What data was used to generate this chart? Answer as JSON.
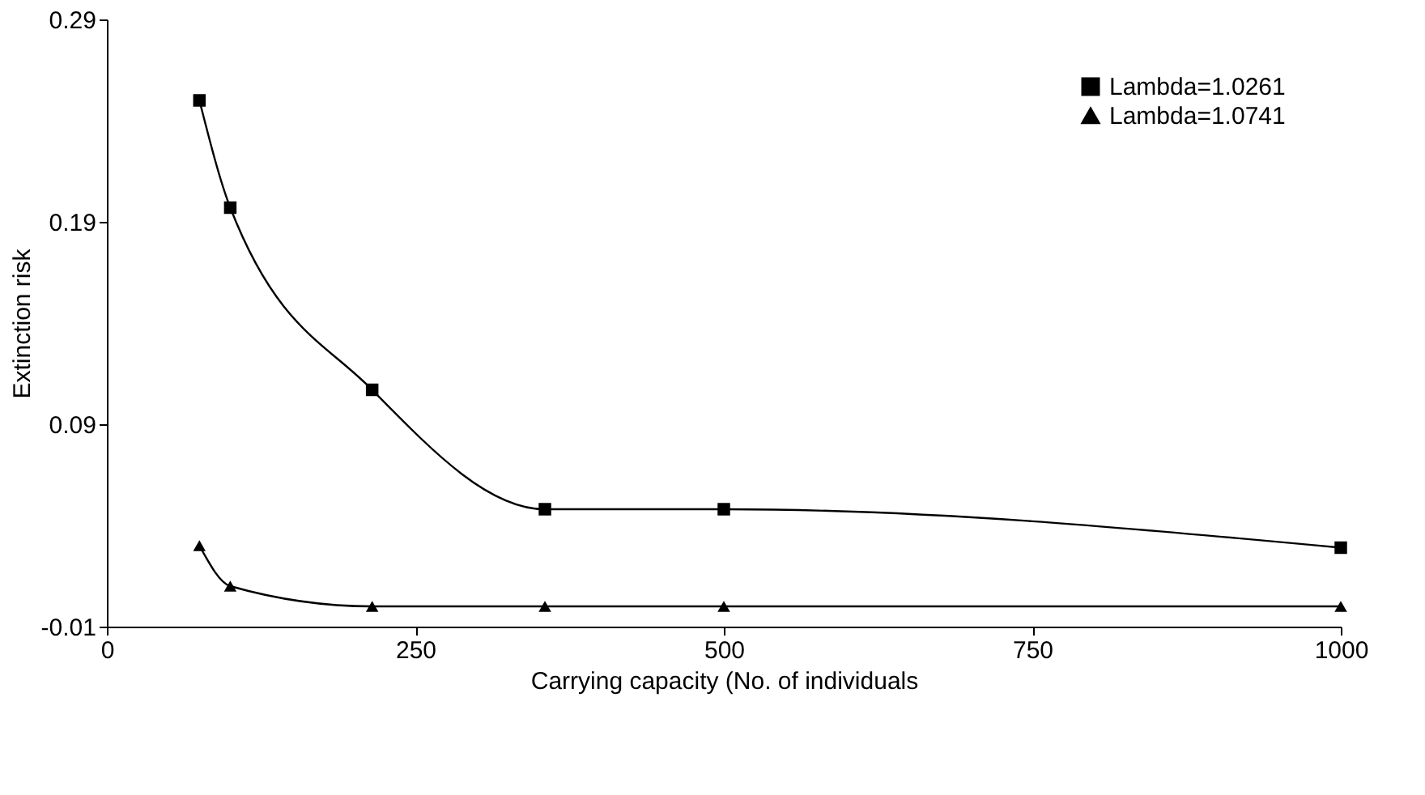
{
  "chart_data": {
    "type": "line",
    "xlabel": "Carrying capacity (No. of individuals",
    "ylabel": "Extinction risk",
    "x": [
      75,
      100,
      215,
      355,
      500,
      1000
    ],
    "series": [
      {
        "name": "Lambda=1.0261",
        "color": "#000000",
        "marker": "square",
        "values": [
          0.25,
          0.197,
          0.107,
          0.048,
          0.048,
          0.029
        ]
      },
      {
        "name": "Lambda=1.0741",
        "color": "#000000",
        "marker": "triangle",
        "values": [
          0.03,
          0.01,
          0.0,
          0.0,
          0.0,
          0.0
        ]
      }
    ],
    "xlim": [
      0,
      1000
    ],
    "xticks": [
      0,
      250,
      500,
      750,
      1000
    ],
    "ylim": [
      -0.01,
      0.29
    ],
    "yticks": [
      -0.01,
      0.09,
      0.19,
      0.29
    ],
    "grid": false,
    "legend": "top right",
    "line_style": "solid"
  }
}
